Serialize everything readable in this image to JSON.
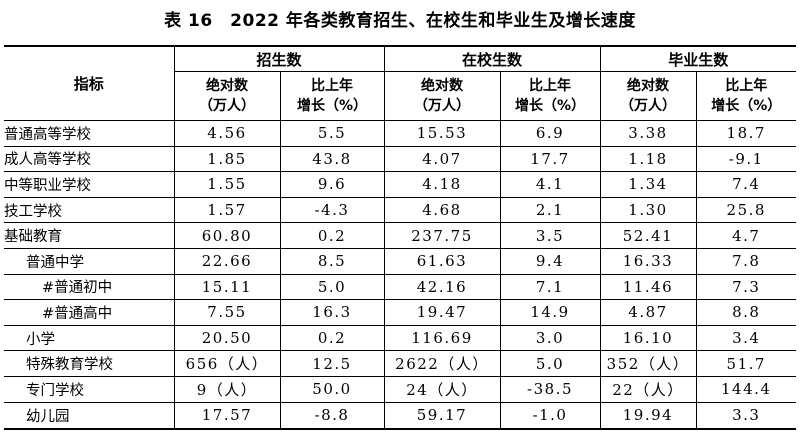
{
  "title": "表 16　2022 年各类教育招生、在校生和毕业生及增长速度",
  "header": {
    "indicator": "指标",
    "groups": [
      "招生数",
      "在校生数",
      "毕业生数"
    ],
    "abs_line1": "绝对数",
    "abs_line2": "（万人）",
    "growth_line1": "比上年",
    "growth_line2": "增长（%）"
  },
  "rows": [
    {
      "name": "普通高等学校",
      "enroll": "4.56",
      "enroll_g": "5.5",
      "students": "15.53",
      "students_g": "6.9",
      "grads": "3.38",
      "grads_g": "18.7"
    },
    {
      "name": "成人高等学校",
      "enroll": "1.85",
      "enroll_g": "43.8",
      "students": "4.07",
      "students_g": "17.7",
      "grads": "1.18",
      "grads_g": "-9.1"
    },
    {
      "name": "中等职业学校",
      "enroll": "1.55",
      "enroll_g": "9.6",
      "students": "4.18",
      "students_g": "4.1",
      "grads": "1.34",
      "grads_g": "7.4"
    },
    {
      "name": "技工学校",
      "enroll": "1.57",
      "enroll_g": "-4.3",
      "students": "4.68",
      "students_g": "2.1",
      "grads": "1.30",
      "grads_g": "25.8"
    },
    {
      "name": "基础教育",
      "enroll": "60.80",
      "enroll_g": "0.2",
      "students": "237.75",
      "students_g": "3.5",
      "grads": "52.41",
      "grads_g": "4.7"
    },
    {
      "name": "普通中学",
      "enroll": "22.66",
      "enroll_g": "8.5",
      "students": "61.63",
      "students_g": "9.4",
      "grads": "16.33",
      "grads_g": "7.8"
    },
    {
      "name": "#普通初中",
      "enroll": "15.11",
      "enroll_g": "5.0",
      "students": "42.16",
      "students_g": "7.1",
      "grads": "11.46",
      "grads_g": "7.3"
    },
    {
      "name": "#普通高中",
      "enroll": "7.55",
      "enroll_g": "16.3",
      "students": "19.47",
      "students_g": "14.9",
      "grads": "4.87",
      "grads_g": "8.8"
    },
    {
      "name": "小学",
      "enroll": "20.50",
      "enroll_g": "0.2",
      "students": "116.69",
      "students_g": "3.0",
      "grads": "16.10",
      "grads_g": "3.4"
    },
    {
      "name": "特殊教育学校",
      "enroll": "656（人）",
      "enroll_g": "12.5",
      "students": "2622（人）",
      "students_g": "5.0",
      "grads": "352（人）",
      "grads_g": "51.7"
    },
    {
      "name": "专门学校",
      "enroll": "9（人）",
      "enroll_g": "50.0",
      "students": "24（人）",
      "students_g": "-38.5",
      "grads": "22（人）",
      "grads_g": "144.4"
    },
    {
      "name": "幼儿园",
      "enroll": "17.57",
      "enroll_g": "-8.8",
      "students": "59.17",
      "students_g": "-1.0",
      "grads": "19.94",
      "grads_g": "3.3"
    }
  ]
}
